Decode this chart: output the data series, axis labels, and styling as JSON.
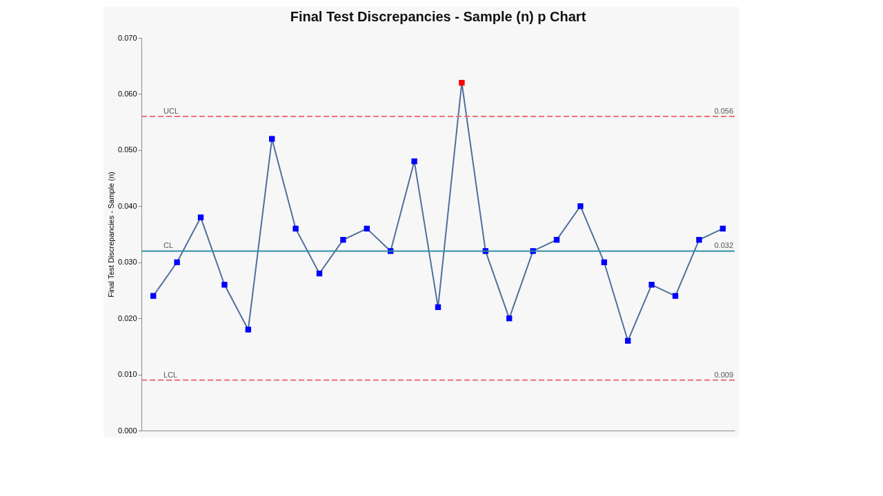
{
  "chart_data": {
    "type": "line",
    "title": "Final Test Discrepancies - Sample (n) p Chart",
    "ylabel": "Final Test Discrepancies - Sample (n)",
    "categories": [
      null,
      null,
      null,
      null,
      null,
      null,
      null,
      null,
      null,
      null,
      null,
      null,
      null,
      null,
      null,
      null,
      null,
      null,
      null,
      null,
      null,
      null,
      null,
      null,
      null
    ],
    "series": [
      {
        "color": "#4f6f9c",
        "colors": [
          "#0000ff",
          "#0000ff",
          "#0000ff",
          "#0000ff",
          "#0000ff",
          "#0000ff",
          "#0000ff",
          "#0000ff",
          "#0000ff",
          "#0000ff",
          "#0000ff",
          "#0000ff",
          "#0000ff",
          "#ff0000",
          "#0000ff",
          "#0000ff",
          "#0000ff",
          "#0000ff",
          "#0000ff",
          "#0000ff",
          "#0000ff",
          "#0000ff",
          "#0000ff",
          "#0000ff",
          "#0000ff"
        ],
        "values": [
          0.024,
          0.03,
          0.038,
          0.026,
          0.018,
          0.052,
          0.036,
          0.028,
          0.034,
          0.036,
          0.032,
          0.048,
          0.022,
          0.062,
          0.032,
          0.02,
          0.032,
          0.034,
          0.04,
          0.03,
          0.016,
          0.026,
          0.024,
          0.034,
          0.036
        ]
      }
    ],
    "ylim": [
      0,
      0.07
    ],
    "yticks": [
      {
        "value": 0,
        "label": "0.000"
      },
      {
        "value": 0.01,
        "label": "0.010"
      },
      {
        "value": 0.02,
        "label": "0.020"
      },
      {
        "value": 0.03,
        "label": "0.030"
      },
      {
        "value": 0.04,
        "label": "0.040"
      },
      {
        "value": 0.05,
        "label": "0.050"
      },
      {
        "value": 0.06,
        "label": "0.060"
      },
      {
        "value": 0.07,
        "label": "0.070"
      }
    ],
    "ref_lines": [
      {
        "axis": "y",
        "value": 0.056,
        "label": "UCL",
        "color": "#f07070",
        "line_style": "dashed"
      },
      {
        "axis": "y",
        "value": 0.032,
        "label": "CL",
        "color": "#2f8fa0",
        "line_style": "solid"
      },
      {
        "axis": "y",
        "value": 0.009,
        "label": "LCL",
        "color": "#f07070",
        "line_style": "dashed"
      }
    ],
    "annotations": [
      {
        "text": "0.056",
        "y": 0.056
      },
      {
        "text": "0.032",
        "y": 0.032
      },
      {
        "text": "0.009",
        "y": 0.009
      }
    ],
    "marker": "square",
    "tick_labels": "y",
    "grid": false
  }
}
